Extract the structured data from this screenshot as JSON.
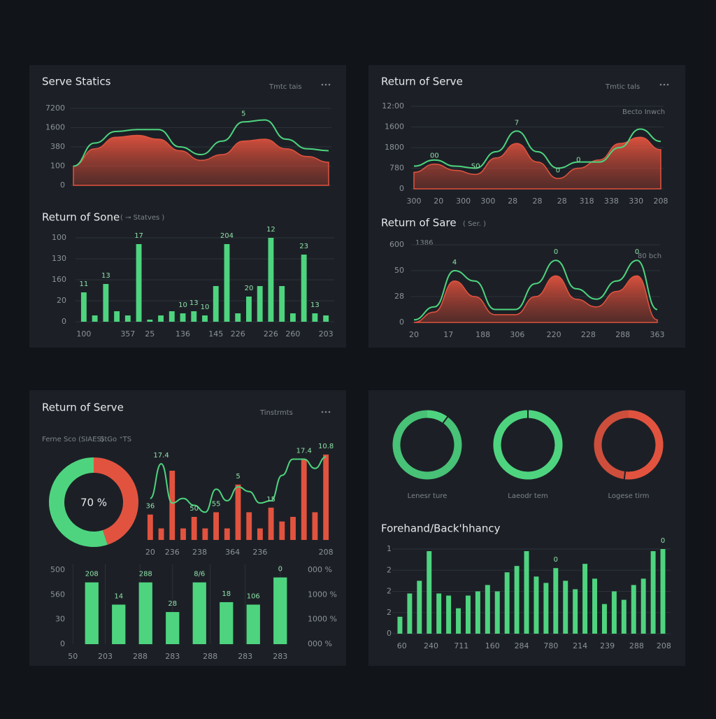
{
  "chart_data": [
    {
      "type": "area",
      "title": "Serve Statics",
      "caption": "Tmtc tais",
      "xlim": [
        0,
        12
      ],
      "ylim": [
        0,
        4
      ],
      "yticks": [
        0,
        {
          "value": 1,
          "label": "100"
        },
        {
          "value": 2,
          "label": "380"
        },
        {
          "value": 3,
          "label": "1600"
        },
        {
          "value": 4,
          "label": "7200"
        }
      ],
      "grid": true,
      "series": [
        {
          "kind": "area",
          "color": "#e2533f",
          "values": [
            1.0,
            1.9,
            2.5,
            2.6,
            2.4,
            1.8,
            1.3,
            1.6,
            2.3,
            2.4,
            1.9,
            1.5,
            1.2
          ]
        },
        {
          "kind": "line",
          "color": "#4ed47f",
          "values": [
            1.0,
            2.2,
            2.8,
            2.9,
            2.9,
            2.0,
            1.6,
            2.3,
            3.3,
            3.4,
            2.4,
            1.9,
            1.8
          ]
        }
      ],
      "annotations": [
        {
          "text": "5",
          "series": 1,
          "index": 8
        }
      ]
    },
    {
      "type": "bar",
      "title": "Return of Sone",
      "subtitle": "( ⊸ Statves )",
      "xlim": [
        -0.5,
        22.5
      ],
      "ylim": [
        0,
        4
      ],
      "yticks": [
        0,
        {
          "value": 1,
          "label": "20"
        },
        {
          "value": 2,
          "label": "160"
        },
        {
          "value": 3,
          "label": "130"
        },
        {
          "value": 4,
          "label": "100"
        }
      ],
      "grid": true,
      "xticks": [
        {
          "value": 0,
          "label": "100"
        },
        {
          "value": 4,
          "label": "357"
        },
        {
          "value": 6,
          "label": "25"
        },
        {
          "value": 9,
          "label": "136"
        },
        {
          "value": 12,
          "label": "145"
        },
        {
          "value": 14,
          "label": "226"
        },
        {
          "value": 17,
          "label": "226"
        },
        {
          "value": 19,
          "label": "260"
        },
        {
          "value": 22,
          "label": "203"
        }
      ],
      "series": [
        {
          "kind": "bar",
          "color": "#4ed47f",
          "values": [
            1.4,
            0.3,
            1.8,
            0.5,
            0.3,
            3.7,
            0.1,
            0.3,
            0.5,
            0.4,
            0.5,
            0.3,
            1.7,
            3.7,
            0.4,
            1.2,
            1.7,
            4.0,
            1.7,
            0.4,
            3.2,
            0.4,
            0.3
          ]
        }
      ],
      "annotations": [
        {
          "text": "11",
          "series": 0,
          "index": 0
        },
        {
          "text": "13",
          "series": 0,
          "index": 2
        },
        {
          "text": "17",
          "series": 0,
          "index": 5
        },
        {
          "text": "10",
          "series": 0,
          "index": 9
        },
        {
          "text": "13",
          "series": 0,
          "index": 10
        },
        {
          "text": "10",
          "series": 0,
          "index": 11
        },
        {
          "text": "204",
          "series": 0,
          "index": 13
        },
        {
          "text": "20",
          "series": 0,
          "index": 15
        },
        {
          "text": "12",
          "series": 0,
          "index": 17
        },
        {
          "text": "23",
          "series": 0,
          "index": 20
        },
        {
          "text": "13",
          "series": 0,
          "index": 21
        }
      ]
    },
    {
      "type": "area",
      "title": "Return of Serve",
      "caption": "Tmtic tals",
      "xlim": [
        0,
        12
      ],
      "ylim": [
        0,
        4
      ],
      "yticks": [
        0,
        {
          "value": 1,
          "label": "780"
        },
        {
          "value": 2,
          "label": "1800"
        },
        {
          "value": 3,
          "label": "1600"
        },
        {
          "value": 4,
          "label": "12:00"
        }
      ],
      "grid": true,
      "xticks": [
        {
          "value": 0,
          "label": "300"
        },
        {
          "value": 1.2,
          "label": "20"
        },
        {
          "value": 2.4,
          "label": "300"
        },
        {
          "value": 3.6,
          "label": "300"
        },
        {
          "value": 4.8,
          "label": "28"
        },
        {
          "value": 6,
          "label": "28"
        },
        {
          "value": 7.2,
          "label": "28"
        },
        {
          "value": 8.4,
          "label": "318"
        },
        {
          "value": 9.6,
          "label": "338"
        },
        {
          "value": 10.8,
          "label": "330"
        },
        {
          "value": 12,
          "label": "208"
        }
      ],
      "series": [
        {
          "kind": "area",
          "color": "#e2533f",
          "values": [
            0.8,
            1.2,
            0.9,
            0.7,
            1.5,
            2.2,
            1.3,
            0.5,
            1.0,
            1.4,
            2.2,
            2.5,
            1.9
          ]
        },
        {
          "kind": "line",
          "color": "#4ed47f",
          "name": "Becto Inwch",
          "values": [
            1.1,
            1.4,
            1.1,
            1.0,
            1.8,
            2.8,
            1.8,
            1.0,
            1.3,
            1.3,
            2.0,
            2.9,
            2.3
          ]
        }
      ],
      "annotations": [
        {
          "text": "7",
          "series": 1,
          "index": 5
        },
        {
          "text": "00",
          "series": 0,
          "index": 1
        },
        {
          "text": "S0",
          "series": 0,
          "index": 3
        },
        {
          "text": "0",
          "series": 0,
          "index": 7
        },
        {
          "text": "0",
          "series": 0,
          "index": 8
        }
      ]
    },
    {
      "type": "area",
      "title": "Return of Sare",
      "subtitle": "( Ser. )",
      "note": "1386",
      "xlim": [
        0,
        12
      ],
      "ylim": [
        0,
        3
      ],
      "yticks": [
        0,
        {
          "value": 1,
          "label": "28"
        },
        {
          "value": 2,
          "label": "50"
        },
        {
          "value": 3,
          "label": "600"
        }
      ],
      "grid": true,
      "xticks": [
        {
          "value": 0,
          "label": "20"
        },
        {
          "value": 1.7,
          "label": "17"
        },
        {
          "value": 3.4,
          "label": "188"
        },
        {
          "value": 5.1,
          "label": "306"
        },
        {
          "value": 6.9,
          "label": "220"
        },
        {
          "value": 8.6,
          "label": "228"
        },
        {
          "value": 10.3,
          "label": "288"
        },
        {
          "value": 12,
          "label": "363"
        }
      ],
      "series": [
        {
          "kind": "area",
          "color": "#e2533f",
          "values": [
            0.0,
            0.4,
            1.6,
            1.0,
            0.3,
            0.3,
            1.0,
            1.8,
            0.9,
            0.6,
            1.2,
            1.8,
            0.1
          ]
        },
        {
          "kind": "line",
          "color": "#4ed47f",
          "name": "80 bch",
          "values": [
            0.1,
            0.6,
            2.0,
            1.6,
            0.5,
            0.5,
            1.5,
            2.4,
            1.3,
            0.9,
            1.6,
            2.4,
            0.5
          ]
        }
      ],
      "annotations": [
        {
          "text": "4",
          "series": 1,
          "index": 2
        },
        {
          "text": "0",
          "series": 1,
          "index": 7
        },
        {
          "text": "0",
          "series": 1,
          "index": 11
        }
      ]
    },
    {
      "type": "donut",
      "title": "Return of Serve",
      "caption": "Tinstrmts",
      "subtitle": "Ferne Sco (SIAES)",
      "note": "StGo ⁺TS",
      "center_label": "70 %",
      "values": [
        45,
        55
      ],
      "colors": [
        "#e2533f",
        "#4ed47f"
      ]
    },
    {
      "type": "bar",
      "xlim": [
        -0.5,
        16.5
      ],
      "ylim": [
        0,
        4
      ],
      "xticks": [
        {
          "value": 0,
          "label": "20"
        },
        {
          "value": 2,
          "label": "236"
        },
        {
          "value": 4.5,
          "label": "238"
        },
        {
          "value": 7.5,
          "label": "364"
        },
        {
          "value": 10,
          "label": "236"
        },
        {
          "value": 16,
          "label": "208"
        }
      ],
      "series": [
        {
          "kind": "bar",
          "color": "#e2533f",
          "values": [
            1.1,
            0.5,
            3.0,
            0.5,
            1.0,
            0.5,
            1.2,
            0.5,
            2.4,
            1.2,
            0.5,
            1.4,
            0.8,
            1.0,
            3.5,
            1.2,
            3.7
          ]
        },
        {
          "kind": "line",
          "color": "#4ed47f",
          "values": [
            1.8,
            3.3,
            1.6,
            1.8,
            1.5,
            1.2,
            2.2,
            1.7,
            2.3,
            2.1,
            1.6,
            1.7,
            2.8,
            3.5,
            3.5,
            3.1,
            3.6
          ]
        }
      ],
      "annotations": [
        {
          "text": "36",
          "series": 0,
          "index": 0
        },
        {
          "text": "17.4",
          "series": 1,
          "index": 1
        },
        {
          "text": "50",
          "series": 0,
          "index": 4
        },
        {
          "text": "55",
          "series": 0,
          "index": 6
        },
        {
          "text": "5",
          "series": 0,
          "index": 8
        },
        {
          "text": "15",
          "series": 0,
          "index": 11
        },
        {
          "text": "17.4",
          "series": 0,
          "index": 14
        },
        {
          "text": "10.8",
          "series": 0,
          "index": 16
        }
      ]
    },
    {
      "type": "bar",
      "xlim": [
        -0.5,
        7.5
      ],
      "ylim": [
        0,
        3
      ],
      "y2lim": [
        0,
        3
      ],
      "xgrid": true,
      "yticks": [
        0,
        {
          "value": 1,
          "label": "30"
        },
        {
          "value": 2,
          "label": "560"
        },
        {
          "value": 3,
          "label": "500"
        }
      ],
      "y2ticks": [
        {
          "value": 0,
          "label": "000 %"
        },
        {
          "value": 1,
          "label": "1000 %"
        },
        {
          "value": 2,
          "label": "1000 %"
        },
        {
          "value": 3,
          "label": "000 %"
        }
      ],
      "xticks": [
        {
          "value": -0.7,
          "label": "50"
        },
        {
          "value": 0.5,
          "label": "203"
        },
        {
          "value": 1.8,
          "label": "288"
        },
        {
          "value": 3,
          "label": "283"
        },
        {
          "value": 4.4,
          "label": "288"
        },
        {
          "value": 5.7,
          "label": "283"
        },
        {
          "value": 7,
          "label": "283"
        }
      ],
      "series": [
        {
          "kind": "bar",
          "color": "#4ed47f",
          "values": [
            2.5,
            1.6,
            2.5,
            1.3,
            2.5,
            1.7,
            1.6,
            2.7
          ]
        }
      ],
      "annotations": [
        {
          "text": "208",
          "series": 0,
          "index": 0
        },
        {
          "text": "14",
          "series": 0,
          "index": 1
        },
        {
          "text": "288",
          "series": 0,
          "index": 2
        },
        {
          "text": "28",
          "series": 0,
          "index": 3
        },
        {
          "text": "8/6",
          "series": 0,
          "index": 4
        },
        {
          "text": "18",
          "series": 0,
          "index": 5
        },
        {
          "text": "106",
          "series": 0,
          "index": 6
        },
        {
          "text": "0",
          "series": 0,
          "index": 7
        }
      ]
    },
    {
      "type": "rings",
      "categories": [
        "Lenesr ture",
        "Laeodr tem",
        "Logese tirm"
      ],
      "values": [
        10,
        100,
        52
      ],
      "colors": [
        "#4ed47f",
        "#4ed47f",
        "#e2533f"
      ]
    },
    {
      "type": "bar",
      "title": "Forehand/Back'hhancy",
      "xlim": [
        -0.5,
        27.5
      ],
      "ylim": [
        0,
        4
      ],
      "grid": true,
      "yticks": [
        0,
        {
          "value": 1,
          "label": "2"
        },
        {
          "value": 2,
          "label": "2"
        },
        {
          "value": 3,
          "label": "2"
        },
        {
          "value": 4,
          "label": "1"
        }
      ],
      "xticks": [
        {
          "value": 0.2,
          "label": "60"
        },
        {
          "value": 3.2,
          "label": "240"
        },
        {
          "value": 6.3,
          "label": "711"
        },
        {
          "value": 9.5,
          "label": "160"
        },
        {
          "value": 12.5,
          "label": "284"
        },
        {
          "value": 15.5,
          "label": "780"
        },
        {
          "value": 18.5,
          "label": "214"
        },
        {
          "value": 21.3,
          "label": "239"
        },
        {
          "value": 24.3,
          "label": "288"
        },
        {
          "value": 27.1,
          "label": "208"
        }
      ],
      "series": [
        {
          "kind": "bar",
          "color": "#4ed47f",
          "values": [
            0.8,
            1.9,
            2.5,
            3.9,
            1.9,
            1.8,
            1.2,
            1.8,
            2.0,
            2.3,
            2.0,
            2.9,
            3.2,
            3.9,
            2.7,
            2.4,
            3.1,
            2.5,
            2.1,
            3.3,
            2.6,
            1.4,
            2.0,
            1.6,
            2.3,
            2.6,
            3.9,
            4.0
          ]
        }
      ],
      "annotations": [
        {
          "text": "0",
          "series": 0,
          "index": 16
        },
        {
          "text": "0",
          "series": 0,
          "index": 27
        }
      ]
    }
  ]
}
